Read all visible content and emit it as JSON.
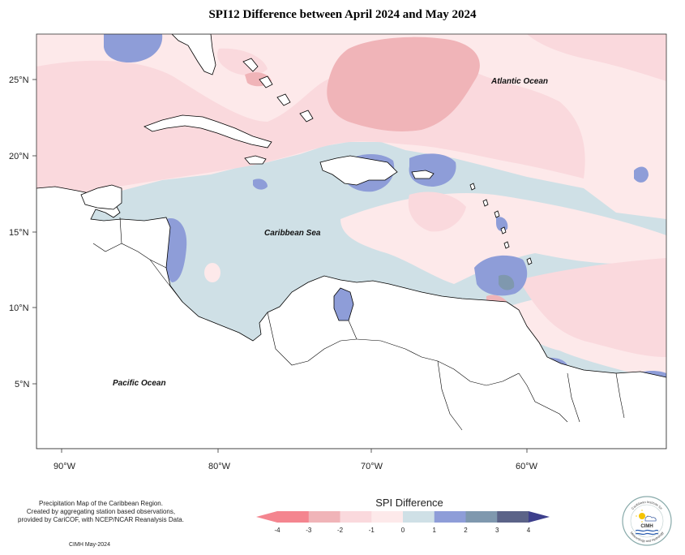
{
  "title": "SPI12 Difference between April 2024 and May 2024",
  "map": {
    "lon_labels": [
      "90°W",
      "80°W",
      "70°W",
      "60°W"
    ],
    "lat_labels": [
      "25°N",
      "20°N",
      "15°N",
      "10°N",
      "5°N"
    ],
    "ocean_labels": [
      "Atlantic Ocean",
      "Caribbean Sea",
      "Pacific Ocean"
    ]
  },
  "legend": {
    "title": "SPI Difference",
    "ticks": [
      "-4",
      "-3",
      "-2",
      "-1",
      "0",
      "1",
      "2",
      "3",
      "4"
    ],
    "colors": [
      "#f4858f",
      "#f0b4b8",
      "#fad9dd",
      "#fde9ea",
      "#cfe0e6",
      "#8e9dd8",
      "#7f98ae",
      "#5b6388"
    ],
    "arrow_left_color": "#f4858f",
    "arrow_right_color": "#3d3f8c"
  },
  "credits": {
    "lines": [
      "Precipitation Map of the Caribbean Region.",
      "Created by aggregating station based observations,",
      "provided by CariCOF, with NCEP/NCAR Reanalysis Data."
    ],
    "date_note": "CIMH May-2024"
  },
  "logo": {
    "name": "CIMH",
    "top_arc": "Caribbean Institute for",
    "bottom_arc": "Meteorology and Hydrology"
  }
}
